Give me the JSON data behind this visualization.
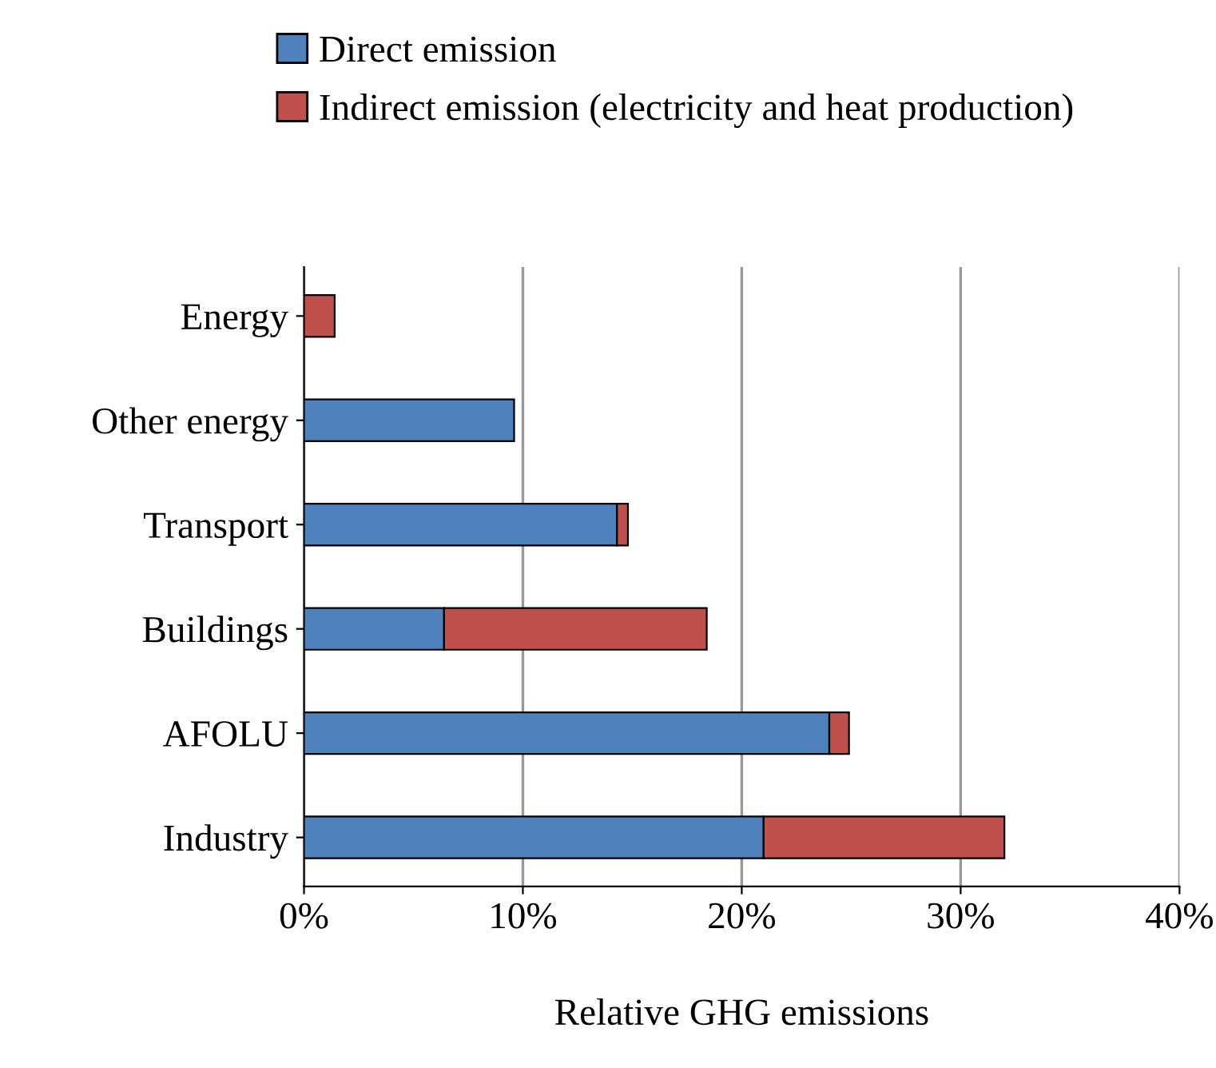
{
  "chart_data": {
    "type": "bar",
    "orientation": "horizontal",
    "stacked": true,
    "categories": [
      "Energy",
      "Other energy",
      "Transport",
      "Buildings",
      "AFOLU",
      "Industry"
    ],
    "series": [
      {
        "name": "Direct emission",
        "color": "#4f81bd",
        "values": [
          null,
          9.6,
          14.3,
          6.4,
          24,
          21
        ]
      },
      {
        "name": "Indirect emission (electricity and heat production)",
        "color": "#c0504d",
        "values": [
          1.4,
          null,
          0.5,
          12,
          0.9,
          11
        ]
      }
    ],
    "xlabel": "Relative GHG emissions",
    "xlim": [
      0,
      40
    ],
    "xticks": [
      {
        "value": 0,
        "label": "0%"
      },
      {
        "value": 10,
        "label": "10%"
      },
      {
        "value": 20,
        "label": "20%"
      },
      {
        "value": 30,
        "label": "30%"
      },
      {
        "value": 40,
        "label": "40%"
      }
    ],
    "grid": "x",
    "legend": "top"
  }
}
